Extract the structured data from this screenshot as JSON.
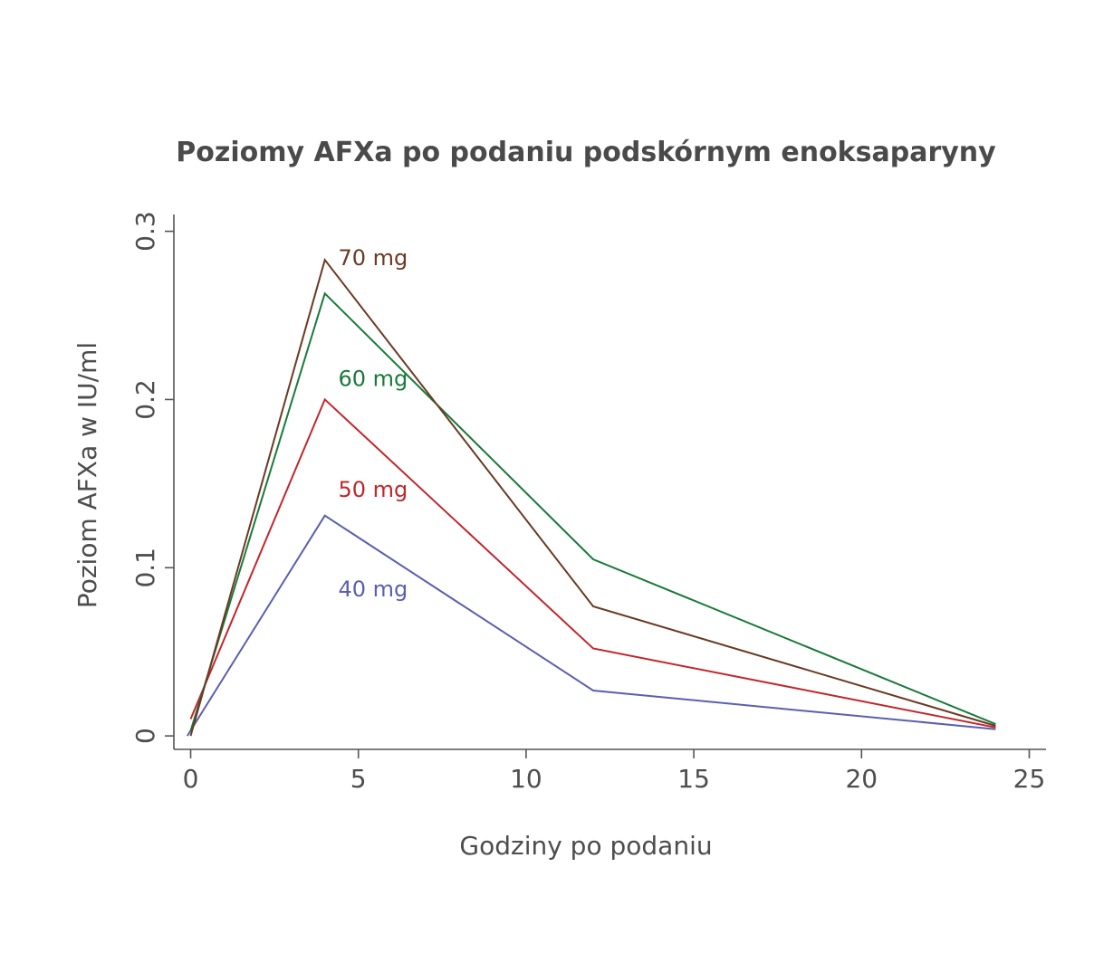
{
  "chart_data": {
    "type": "line",
    "title": "Poziomy AFXa po podaniu podskórnym enoksaparyny",
    "xlabel": "Godziny po podaniu",
    "ylabel": "Poziom AFXa w IU/ml",
    "xlim": [
      -0.5,
      25.5
    ],
    "ylim": [
      -0.008,
      0.31
    ],
    "xticks": [
      0,
      5,
      10,
      15,
      20,
      25
    ],
    "xtick_labels": [
      "0",
      "5",
      "10",
      "15",
      "20",
      "25"
    ],
    "yticks": [
      0,
      0.1,
      0.2,
      0.3
    ],
    "ytick_labels": [
      "0",
      "0.1",
      "0.2",
      "0.3"
    ],
    "grid": false,
    "legend": "none",
    "series": [
      {
        "name": "40 mg",
        "color": "#5b5fb0",
        "x": [
          -0.1,
          4,
          12,
          24
        ],
        "y": [
          0.0,
          0.131,
          0.027,
          0.004
        ]
      },
      {
        "name": "50 mg",
        "color": "#c0272d",
        "x": [
          0,
          4,
          12,
          24
        ],
        "y": [
          0.01,
          0.2,
          0.052,
          0.005
        ]
      },
      {
        "name": "60 mg",
        "color": "#1a7a3a",
        "x": [
          0,
          4,
          12,
          24
        ],
        "y": [
          0.003,
          0.263,
          0.105,
          0.007
        ]
      },
      {
        "name": "70 mg",
        "color": "#6b3a24",
        "x": [
          0,
          4,
          12,
          24
        ],
        "y": [
          0.0,
          0.283,
          0.077,
          0.006
        ]
      }
    ],
    "annotations": [
      {
        "text": "70 mg",
        "x": 4.4,
        "y": 0.28,
        "color": "#6b3a24"
      },
      {
        "text": "60 mg",
        "x": 4.4,
        "y": 0.208,
        "color": "#1a7a3a"
      },
      {
        "text": "50 mg",
        "x": 4.4,
        "y": 0.142,
        "color": "#c0272d"
      },
      {
        "text": "40 mg",
        "x": 4.4,
        "y": 0.083,
        "color": "#5b5fb0"
      }
    ]
  }
}
